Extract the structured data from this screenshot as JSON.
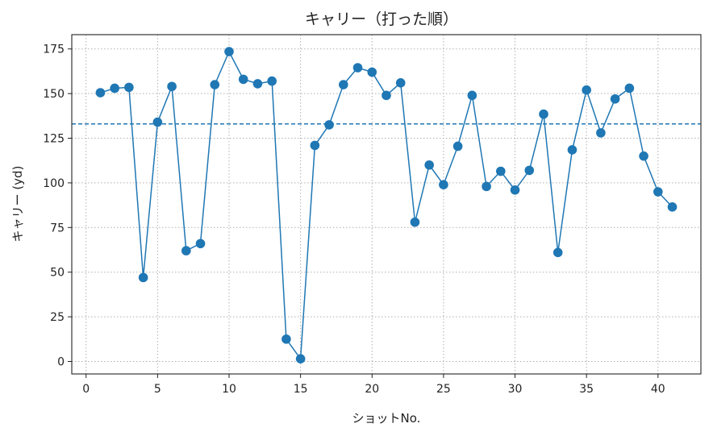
{
  "chart_data": {
    "type": "line",
    "title": "キャリー（打った順）",
    "xlabel": "ショットNo.",
    "ylabel": "キャリー (yd)",
    "xlim": [
      -1,
      43
    ],
    "ylim": [
      -7,
      183
    ],
    "xticks": [
      0,
      5,
      10,
      15,
      20,
      25,
      30,
      35,
      40
    ],
    "yticks": [
      0,
      25,
      50,
      75,
      100,
      125,
      150,
      175
    ],
    "grid": true,
    "reference_line": {
      "y": 133,
      "style": "dashed"
    },
    "series": [
      {
        "x": [
          1,
          2,
          3,
          4,
          5,
          6,
          7,
          8,
          9,
          10,
          11,
          12,
          13,
          14,
          15,
          16,
          17,
          18,
          19,
          20,
          21,
          22,
          23,
          24,
          25,
          26,
          27,
          28,
          29,
          30,
          31,
          32,
          33,
          34,
          35,
          36,
          37,
          38,
          39,
          40,
          41
        ],
        "values": [
          150.5,
          153,
          153.5,
          47,
          134,
          154,
          62,
          66,
          155,
          173.5,
          158,
          155.5,
          157,
          12.5,
          1.5,
          121,
          132.5,
          155,
          164.5,
          162,
          149,
          156,
          78,
          110,
          99,
          120.5,
          149,
          98,
          106.5,
          96,
          107,
          138.5,
          61,
          118.5,
          152,
          128,
          147,
          153,
          115,
          95,
          86.5
        ]
      }
    ],
    "colors": {
      "series": "#1f77b4",
      "reference": "#1f77b4",
      "grid": "#b0b0b0"
    }
  }
}
